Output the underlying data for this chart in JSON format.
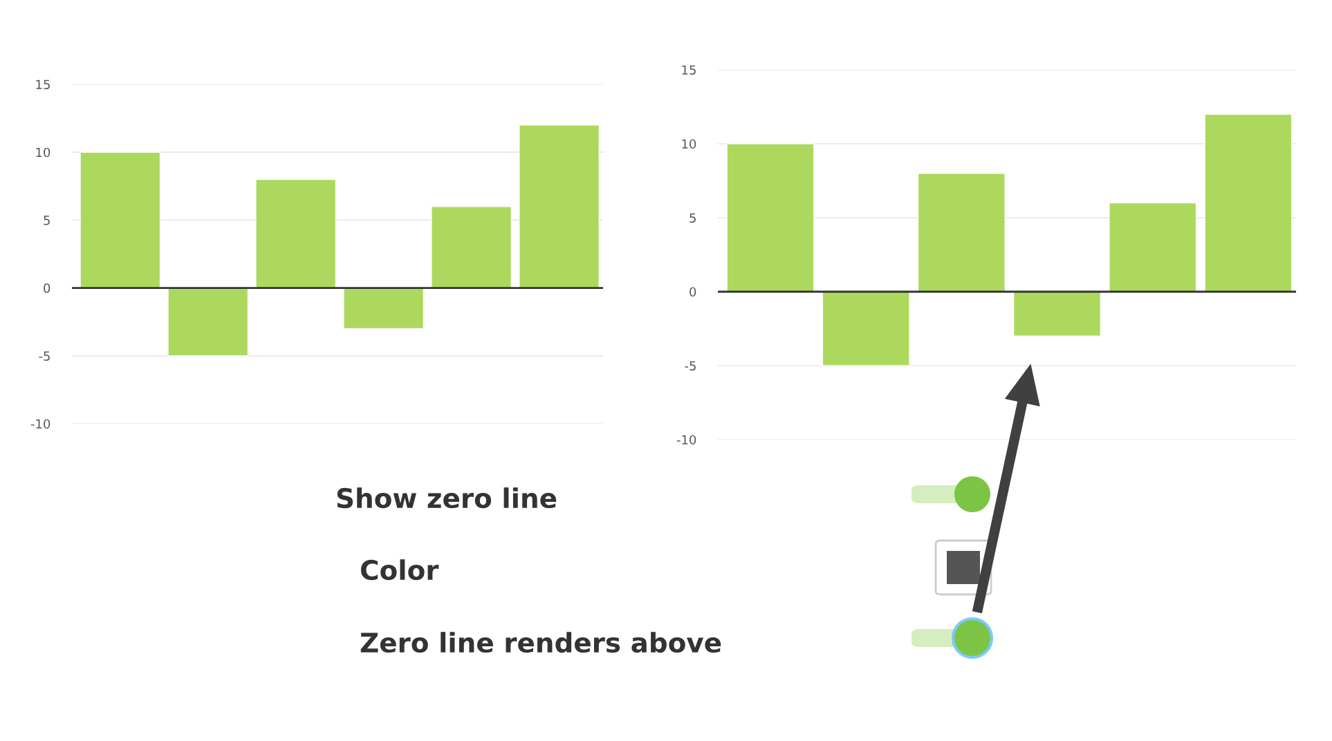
{
  "chart_data": [
    {
      "type": "bar",
      "categories": [
        null,
        null,
        null,
        null,
        null,
        null
      ],
      "values": [
        10,
        -5,
        8,
        -3,
        6,
        12
      ],
      "color": "#acd95d",
      "ylim": [
        -10,
        15
      ],
      "yticks": [
        -10,
        -5,
        0,
        5,
        10,
        15
      ],
      "grid": "y",
      "ref_lines": [
        {
          "axis": "y",
          "value": 0,
          "color": "#333333"
        }
      ],
      "annotations": [
        "Show zero line",
        "Color",
        "Zero line renders above"
      ]
    },
    {
      "type": "bar",
      "categories": [
        null,
        null,
        null,
        null,
        null,
        null
      ],
      "values": [
        10,
        -5,
        8,
        -3,
        6,
        12
      ],
      "color": "#acd95d",
      "ylim": [
        -10,
        15
      ],
      "yticks": [
        -10,
        -5,
        0,
        5,
        10,
        15
      ],
      "grid": "y",
      "ref_lines": [
        {
          "axis": "y",
          "value": 0,
          "color": "#333333"
        }
      ]
    }
  ]
}
